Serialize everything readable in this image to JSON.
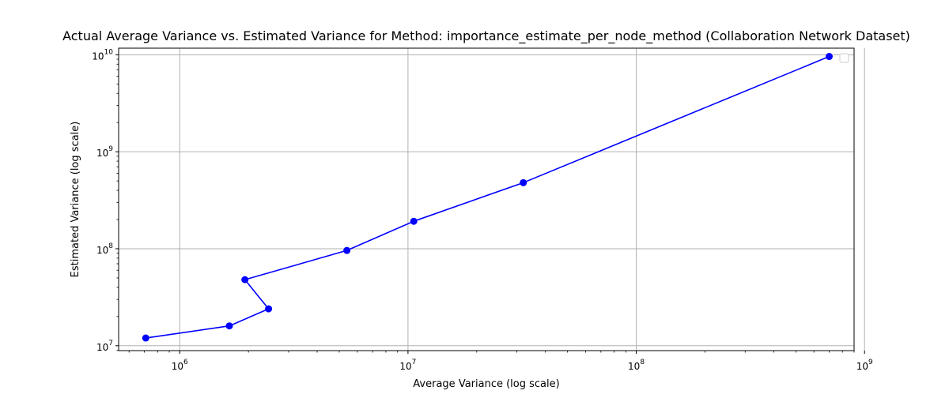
{
  "chart_data": {
    "type": "line",
    "title": "Actual Average Variance vs. Estimated Variance for Method: importance_estimate_per_node_method (Collaboration Network Dataset)",
    "xlabel": "Average Variance (log scale)",
    "ylabel": "Estimated Variance (log scale)",
    "xscale": "log",
    "yscale": "log",
    "xlim": [
      540000,
      900000000
    ],
    "ylim": [
      8900000,
      11700000000
    ],
    "grid": true,
    "legend_position": "top-right",
    "legend_entries": [],
    "x_ticks": [
      {
        "base": "10",
        "exp": "6",
        "value": 1000000
      },
      {
        "base": "10",
        "exp": "7",
        "value": 10000000
      },
      {
        "base": "10",
        "exp": "8",
        "value": 100000000
      },
      {
        "base": "10",
        "exp": "9",
        "value": 1000000000
      }
    ],
    "y_ticks": [
      {
        "base": "10",
        "exp": "7",
        "value": 10000000
      },
      {
        "base": "10",
        "exp": "8",
        "value": 100000000
      },
      {
        "base": "10",
        "exp": "9",
        "value": 1000000000
      },
      {
        "base": "10",
        "exp": "10",
        "value": 10000000000
      }
    ],
    "series": [
      {
        "color": "#0000ff",
        "marker": "circle",
        "points": [
          {
            "x": 710000,
            "y": 12000000
          },
          {
            "x": 1650000,
            "y": 16000000
          },
          {
            "x": 2450000,
            "y": 24000000
          },
          {
            "x": 1930000,
            "y": 48000000
          },
          {
            "x": 5400000,
            "y": 96000000
          },
          {
            "x": 10600000,
            "y": 192000000
          },
          {
            "x": 32000000,
            "y": 480000000
          },
          {
            "x": 700000000,
            "y": 9600000000
          }
        ]
      }
    ]
  }
}
